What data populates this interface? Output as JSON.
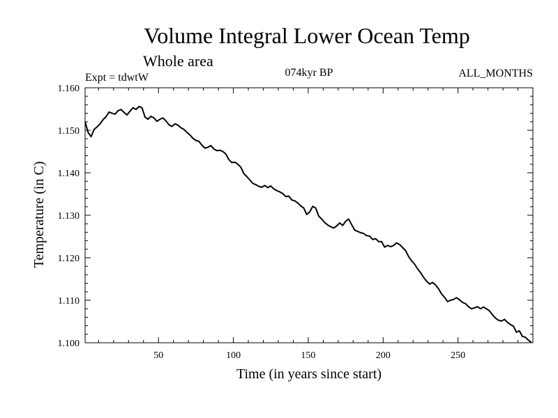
{
  "chart_data": {
    "type": "line",
    "title": "Volume Integral Lower Ocean Temp",
    "subtitle": "Whole area",
    "header_left": "Expt = tdwtW",
    "header_center": "074kyr BP",
    "header_right": "ALL_MONTHS",
    "xlabel": "Time (in years since start)",
    "ylabel": "Temperature (in C)",
    "xlim": [
      1,
      300
    ],
    "ylim": [
      1.1,
      1.16
    ],
    "xticks": [
      50,
      100,
      150,
      200,
      250
    ],
    "xtick_labels": [
      "50",
      "100",
      "150",
      "200",
      "250"
    ],
    "yticks": [
      1.1,
      1.11,
      1.12,
      1.13,
      1.14,
      1.15,
      1.16
    ],
    "ytick_labels": [
      "1.100",
      "1.110",
      "1.120",
      "1.130",
      "1.140",
      "1.150",
      "1.160"
    ],
    "grid": false,
    "series": [
      {
        "name": "Volume Integral Lower Ocean Temp",
        "x": [
          1,
          3,
          5,
          7,
          9,
          11,
          13,
          15,
          17,
          19,
          21,
          23,
          25,
          27,
          29,
          31,
          33,
          35,
          37,
          39,
          41,
          43,
          45,
          47,
          49,
          51,
          53,
          55,
          57,
          59,
          61,
          63,
          65,
          67,
          69,
          71,
          73,
          75,
          77,
          79,
          81,
          83,
          85,
          87,
          89,
          91,
          93,
          95,
          97,
          99,
          101,
          103,
          105,
          107,
          109,
          111,
          113,
          115,
          117,
          119,
          121,
          123,
          125,
          127,
          129,
          131,
          133,
          135,
          137,
          139,
          141,
          143,
          145,
          147,
          149,
          151,
          153,
          155,
          157,
          159,
          161,
          163,
          165,
          167,
          169,
          171,
          173,
          175,
          177,
          179,
          181,
          183,
          185,
          187,
          189,
          191,
          193,
          195,
          197,
          199,
          201,
          203,
          205,
          207,
          209,
          211,
          213,
          215,
          217,
          219,
          221,
          223,
          225,
          227,
          229,
          231,
          233,
          235,
          237,
          239,
          241,
          243,
          245,
          247,
          249,
          251,
          253,
          255,
          257,
          259,
          261,
          263,
          265,
          267,
          269,
          271,
          273,
          275,
          277,
          279,
          281,
          283,
          285,
          287,
          289,
          291,
          293,
          295,
          297,
          299
        ],
        "values": [
          1.152,
          1.1495,
          1.1485,
          1.1502,
          1.1508,
          1.1515,
          1.1525,
          1.1532,
          1.1543,
          1.154,
          1.1538,
          1.1546,
          1.1549,
          1.1542,
          1.1536,
          1.1545,
          1.1553,
          1.1549,
          1.1556,
          1.1553,
          1.1531,
          1.1526,
          1.1533,
          1.1529,
          1.1521,
          1.1526,
          1.1529,
          1.1522,
          1.1513,
          1.1509,
          1.1515,
          1.1512,
          1.1506,
          1.1502,
          1.1495,
          1.1489,
          1.1481,
          1.1476,
          1.1474,
          1.1465,
          1.1458,
          1.146,
          1.1464,
          1.1456,
          1.1452,
          1.1453,
          1.145,
          1.1444,
          1.1431,
          1.1424,
          1.1425,
          1.142,
          1.1413,
          1.1398,
          1.1391,
          1.1383,
          1.1375,
          1.1372,
          1.1368,
          1.1366,
          1.137,
          1.1365,
          1.1369,
          1.1362,
          1.1358,
          1.1355,
          1.1351,
          1.1344,
          1.1345,
          1.1336,
          1.1334,
          1.1329,
          1.1322,
          1.1317,
          1.1302,
          1.1308,
          1.1321,
          1.1317,
          1.1298,
          1.1291,
          1.1283,
          1.1277,
          1.1273,
          1.127,
          1.1275,
          1.1282,
          1.1276,
          1.1286,
          1.1291,
          1.1278,
          1.1265,
          1.1262,
          1.1259,
          1.1257,
          1.1252,
          1.1251,
          1.1243,
          1.1245,
          1.1238,
          1.1238,
          1.1225,
          1.1229,
          1.1226,
          1.1229,
          1.1235,
          1.1231,
          1.1224,
          1.1217,
          1.1203,
          1.1193,
          1.1185,
          1.1174,
          1.1165,
          1.1154,
          1.1145,
          1.1138,
          1.1142,
          1.1136,
          1.1127,
          1.1115,
          1.1107,
          1.1097,
          1.11,
          1.1102,
          1.1106,
          1.1101,
          1.1095,
          1.1092,
          1.1085,
          1.108,
          1.1082,
          1.1085,
          1.108,
          1.1084,
          1.108,
          1.1075,
          1.1066,
          1.1058,
          1.1053,
          1.1051,
          1.1055,
          1.1048,
          1.1043,
          1.1039,
          1.1025,
          1.1028,
          1.1015,
          1.1013,
          1.1006,
          1.1001
        ]
      }
    ]
  },
  "colors": {
    "background": "#ffffff",
    "line": "#000000",
    "axes": "#000000"
  }
}
